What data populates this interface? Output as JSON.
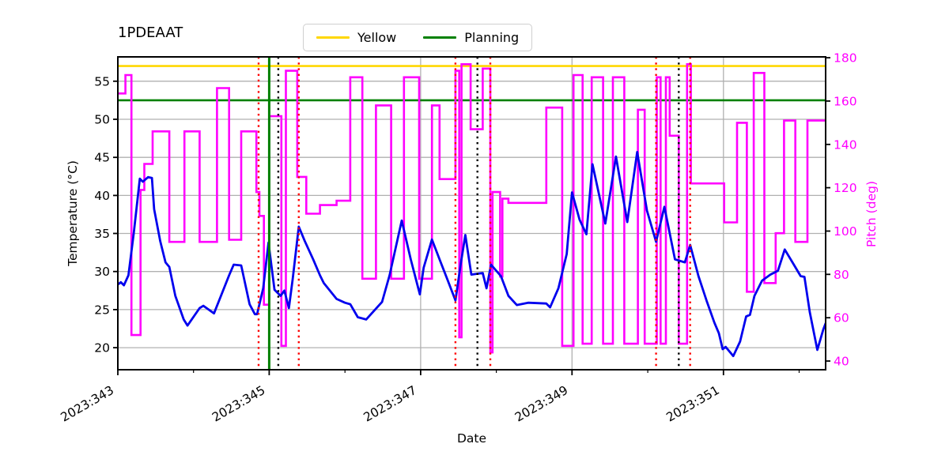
{
  "title": "1PDEAAT",
  "legend": {
    "items": [
      {
        "label": "Yellow",
        "color": "#FFD700"
      },
      {
        "label": "Planning",
        "color": "#008000"
      }
    ]
  },
  "colors": {
    "grid": "#B0B0B0",
    "spine": "#000000",
    "temperature_line": "#0000EE",
    "pitch_line": "#FF00FF",
    "red_dotted": "#FF0000",
    "black_dotted": "#000000",
    "green_vline": "#008000",
    "right_axis_text": "#FF00FF"
  },
  "chart_data": {
    "type": "line",
    "title": "1PDEAAT",
    "xlabel": "Date",
    "ylabel_left": "Temperature (°C)",
    "ylabel_right": "Pitch (deg)",
    "x_unit": "2023 day-of-year",
    "xlim": [
      343.0,
      352.35
    ],
    "ylim_left": [
      17.1,
      58.2
    ],
    "ylim_right": [
      36.0,
      180.4
    ],
    "grid": true,
    "legend_position": "upper center",
    "x_major_ticks": [
      {
        "value": 343,
        "label": "2023:343"
      },
      {
        "value": 345,
        "label": "2023:345"
      },
      {
        "value": 347,
        "label": "2023:347"
      },
      {
        "value": 349,
        "label": "2023:349"
      },
      {
        "value": 351,
        "label": "2023:351"
      }
    ],
    "x_minor_ticks": [
      344,
      346,
      348,
      350,
      352
    ],
    "y_left_ticks": [
      20,
      25,
      30,
      35,
      40,
      45,
      50,
      55
    ],
    "y_right_ticks": [
      40,
      60,
      80,
      100,
      120,
      140,
      160,
      180
    ],
    "hlines": [
      {
        "name": "Yellow",
        "y": 57.0,
        "color": "#FFD700",
        "style": "solid"
      },
      {
        "name": "Planning",
        "y": 52.5,
        "color": "#008000",
        "style": "solid"
      }
    ],
    "vlines": [
      {
        "x": 345.0,
        "color": "#008000",
        "style": "solid"
      },
      {
        "x": 344.86,
        "color": "#FF0000",
        "style": "dotted"
      },
      {
        "x": 345.39,
        "color": "#FF0000",
        "style": "dotted"
      },
      {
        "x": 347.46,
        "color": "#FF0000",
        "style": "dotted"
      },
      {
        "x": 347.92,
        "color": "#FF0000",
        "style": "dotted"
      },
      {
        "x": 350.11,
        "color": "#FF0000",
        "style": "dotted"
      },
      {
        "x": 350.56,
        "color": "#FF0000",
        "style": "dotted"
      },
      {
        "x": 345.12,
        "color": "#000000",
        "style": "dotted"
      },
      {
        "x": 347.75,
        "color": "#000000",
        "style": "dotted"
      },
      {
        "x": 350.41,
        "color": "#000000",
        "style": "dotted"
      }
    ],
    "series": [
      {
        "name": "1PDEAAT temperature",
        "axis": "left",
        "color": "#0000EE",
        "style": "line",
        "points": [
          [
            343.0,
            28.3
          ],
          [
            343.04,
            28.6
          ],
          [
            343.08,
            28.2
          ],
          [
            343.14,
            29.5
          ],
          [
            343.21,
            35.0
          ],
          [
            343.29,
            42.2
          ],
          [
            343.33,
            41.8
          ],
          [
            343.4,
            42.4
          ],
          [
            343.45,
            42.3
          ],
          [
            343.48,
            38.2
          ],
          [
            343.56,
            34.0
          ],
          [
            343.63,
            31.2
          ],
          [
            343.68,
            30.6
          ],
          [
            343.76,
            26.8
          ],
          [
            343.87,
            23.7
          ],
          [
            343.92,
            22.9
          ],
          [
            344.08,
            25.2
          ],
          [
            344.13,
            25.5
          ],
          [
            344.27,
            24.5
          ],
          [
            344.47,
            29.5
          ],
          [
            344.53,
            30.9
          ],
          [
            344.63,
            30.8
          ],
          [
            344.74,
            25.7
          ],
          [
            344.81,
            24.4
          ],
          [
            344.84,
            24.4
          ],
          [
            344.92,
            27.8
          ],
          [
            344.99,
            33.8
          ],
          [
            345.07,
            27.6
          ],
          [
            345.15,
            26.8
          ],
          [
            345.2,
            27.5
          ],
          [
            345.26,
            25.2
          ],
          [
            345.31,
            29.0
          ],
          [
            345.39,
            35.9
          ],
          [
            345.47,
            34.0
          ],
          [
            345.58,
            31.6
          ],
          [
            345.67,
            29.5
          ],
          [
            345.72,
            28.5
          ],
          [
            345.89,
            26.4
          ],
          [
            346.0,
            25.9
          ],
          [
            346.07,
            25.7
          ],
          [
            346.17,
            24.0
          ],
          [
            346.28,
            23.7
          ],
          [
            346.49,
            26.0
          ],
          [
            346.59,
            29.5
          ],
          [
            346.75,
            36.7
          ],
          [
            346.87,
            31.6
          ],
          [
            346.99,
            27.0
          ],
          [
            347.04,
            30.5
          ],
          [
            347.15,
            34.2
          ],
          [
            347.25,
            31.6
          ],
          [
            347.36,
            28.8
          ],
          [
            347.46,
            26.2
          ],
          [
            347.53,
            31.0
          ],
          [
            347.59,
            34.8
          ],
          [
            347.67,
            29.6
          ],
          [
            347.74,
            29.7
          ],
          [
            347.82,
            29.8
          ],
          [
            347.87,
            27.8
          ],
          [
            347.93,
            30.9
          ],
          [
            348.06,
            29.4
          ],
          [
            348.16,
            26.8
          ],
          [
            348.27,
            25.6
          ],
          [
            348.42,
            25.9
          ],
          [
            348.66,
            25.8
          ],
          [
            348.71,
            25.3
          ],
          [
            348.82,
            27.8
          ],
          [
            348.93,
            32.3
          ],
          [
            349.0,
            40.4
          ],
          [
            349.1,
            36.8
          ],
          [
            349.19,
            34.9
          ],
          [
            349.27,
            44.1
          ],
          [
            349.44,
            36.3
          ],
          [
            349.58,
            45.1
          ],
          [
            349.73,
            36.5
          ],
          [
            349.86,
            45.7
          ],
          [
            349.99,
            38.0
          ],
          [
            350.11,
            33.9
          ],
          [
            350.22,
            38.5
          ],
          [
            350.36,
            31.6
          ],
          [
            350.49,
            31.2
          ],
          [
            350.56,
            33.5
          ],
          [
            350.67,
            29.4
          ],
          [
            350.78,
            26.1
          ],
          [
            350.88,
            23.3
          ],
          [
            350.94,
            21.9
          ],
          [
            350.99,
            19.8
          ],
          [
            351.03,
            20.1
          ],
          [
            351.13,
            18.9
          ],
          [
            351.22,
            20.8
          ],
          [
            351.3,
            24.1
          ],
          [
            351.35,
            24.3
          ],
          [
            351.41,
            26.8
          ],
          [
            351.51,
            28.8
          ],
          [
            351.62,
            29.6
          ],
          [
            351.72,
            30.1
          ],
          [
            351.81,
            32.9
          ],
          [
            351.93,
            30.9
          ],
          [
            352.02,
            29.4
          ],
          [
            352.07,
            29.3
          ],
          [
            352.14,
            24.7
          ],
          [
            352.24,
            19.7
          ],
          [
            352.32,
            22.4
          ],
          [
            352.35,
            23.2
          ]
        ]
      },
      {
        "name": "Pitch",
        "axis": "right",
        "color": "#FF00FF",
        "style": "step",
        "points": [
          [
            343.0,
            163.5
          ],
          [
            343.1,
            172
          ],
          [
            343.18,
            52
          ],
          [
            343.3,
            119
          ],
          [
            343.35,
            131
          ],
          [
            343.46,
            146
          ],
          [
            343.68,
            95
          ],
          [
            343.88,
            146
          ],
          [
            344.08,
            95
          ],
          [
            344.31,
            166
          ],
          [
            344.47,
            96
          ],
          [
            344.63,
            146
          ],
          [
            344.83,
            118
          ],
          [
            344.87,
            107
          ],
          [
            344.93,
            66
          ],
          [
            345.0,
            153
          ],
          [
            345.16,
            47
          ],
          [
            345.22,
            174
          ],
          [
            345.37,
            125
          ],
          [
            345.49,
            108
          ],
          [
            345.67,
            112
          ],
          [
            345.89,
            114
          ],
          [
            346.07,
            171
          ],
          [
            346.23,
            78
          ],
          [
            346.41,
            158
          ],
          [
            346.61,
            78
          ],
          [
            346.78,
            171
          ],
          [
            346.98,
            78
          ],
          [
            347.15,
            158
          ],
          [
            347.25,
            124
          ],
          [
            347.46,
            174
          ],
          [
            347.51,
            51
          ],
          [
            347.54,
            177
          ],
          [
            347.66,
            147
          ],
          [
            347.82,
            175
          ],
          [
            347.92,
            44
          ],
          [
            347.95,
            118
          ],
          [
            348.05,
            79
          ],
          [
            348.08,
            115
          ],
          [
            348.16,
            113
          ],
          [
            348.66,
            157
          ],
          [
            348.87,
            47
          ],
          [
            349.02,
            172
          ],
          [
            349.14,
            48
          ],
          [
            349.26,
            171
          ],
          [
            349.41,
            48
          ],
          [
            349.54,
            171
          ],
          [
            349.69,
            48
          ],
          [
            349.87,
            156
          ],
          [
            349.96,
            48
          ],
          [
            350.12,
            171
          ],
          [
            350.17,
            48
          ],
          [
            350.24,
            171
          ],
          [
            350.29,
            144
          ],
          [
            350.41,
            48
          ],
          [
            350.52,
            177
          ],
          [
            350.57,
            122
          ],
          [
            351.01,
            104
          ],
          [
            351.18,
            150
          ],
          [
            351.31,
            72
          ],
          [
            351.4,
            173
          ],
          [
            351.54,
            76
          ],
          [
            351.69,
            99
          ],
          [
            351.8,
            151
          ],
          [
            351.95,
            95
          ],
          [
            352.11,
            151
          ]
        ]
      }
    ]
  }
}
